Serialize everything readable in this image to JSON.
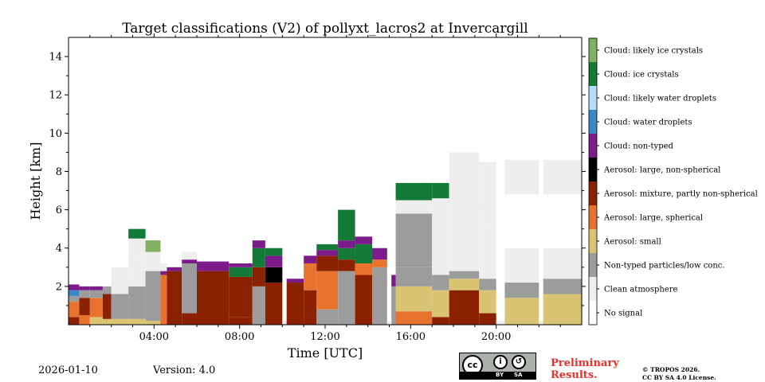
{
  "chart_data": {
    "type": "heatmap",
    "title": "Target classifications (V2) of pollyxt_lacros2 at Invercargill",
    "xlabel": "Time [UTC]",
    "ylabel": "Height [km]",
    "xlim": [
      0,
      24
    ],
    "ylim": [
      0,
      15
    ],
    "x_ticks": [
      "04:00",
      "08:00",
      "12:00",
      "16:00",
      "20:00"
    ],
    "x_tick_values": [
      4,
      8,
      12,
      16,
      20
    ],
    "y_ticks": [
      "2",
      "4",
      "6",
      "8",
      "10",
      "12",
      "14"
    ],
    "y_tick_values": [
      2,
      4,
      6,
      8,
      10,
      12,
      14
    ],
    "categories": [
      {
        "code": 11,
        "label": "Cloud: likely ice crystals",
        "color": "#82b062"
      },
      {
        "code": 10,
        "label": "Cloud: ice crystals",
        "color": "#147a38"
      },
      {
        "code": 9,
        "label": "Cloud: likely water droplets",
        "color": "#b4dcf8"
      },
      {
        "code": 8,
        "label": "Cloud: water droplets",
        "color": "#3a88c8"
      },
      {
        "code": 7,
        "label": "Cloud: non-typed",
        "color": "#7e1b8a"
      },
      {
        "code": 6,
        "label": "Aerosol: large, non-spherical",
        "color": "#000000"
      },
      {
        "code": 5,
        "label": "Aerosol: mixture, partly non-spherical",
        "color": "#8a2100"
      },
      {
        "code": 4,
        "label": "Aerosol: large, spherical",
        "color": "#e8732e"
      },
      {
        "code": 3,
        "label": "Aerosol: small",
        "color": "#d8c472"
      },
      {
        "code": 2,
        "label": "Non-typed particles/low conc.",
        "color": "#9c9c9c"
      },
      {
        "code": 1,
        "label": "Clean atmosphere",
        "color": "#eeeeee"
      },
      {
        "code": 0,
        "label": "No signal",
        "color": "#ffffff"
      }
    ],
    "profiles": [
      {
        "t0": 0.0,
        "t1": 0.5,
        "layers": [
          [
            0,
            0.4,
            5
          ],
          [
            0.4,
            1.2,
            4
          ],
          [
            1.2,
            1.5,
            2
          ],
          [
            1.5,
            1.8,
            8
          ],
          [
            1.8,
            2.1,
            7
          ]
        ]
      },
      {
        "t0": 0.5,
        "t1": 1.0,
        "layers": [
          [
            0,
            0.5,
            4
          ],
          [
            0.5,
            1.4,
            5
          ],
          [
            1.4,
            1.8,
            2
          ],
          [
            1.8,
            2.0,
            7
          ]
        ]
      },
      {
        "t0": 1.0,
        "t1": 1.6,
        "layers": [
          [
            0,
            0.4,
            3
          ],
          [
            0.4,
            1.4,
            4
          ],
          [
            1.4,
            1.8,
            2
          ],
          [
            1.8,
            2.0,
            7
          ]
        ]
      },
      {
        "t0": 1.6,
        "t1": 2.0,
        "layers": [
          [
            0,
            0.3,
            3
          ],
          [
            0.3,
            1.6,
            5
          ],
          [
            1.6,
            2.0,
            2
          ]
        ]
      },
      {
        "t0": 2.0,
        "t1": 2.8,
        "layers": [
          [
            0,
            0.3,
            3
          ],
          [
            0.3,
            1.6,
            2
          ],
          [
            1.6,
            3.0,
            1
          ]
        ]
      },
      {
        "t0": 2.8,
        "t1": 3.6,
        "layers": [
          [
            0,
            0.3,
            3
          ],
          [
            0.3,
            2.0,
            2
          ],
          [
            2.0,
            3.5,
            1
          ],
          [
            3.5,
            4.5,
            1
          ],
          [
            4.5,
            5.0,
            10
          ]
        ]
      },
      {
        "t0": 3.6,
        "t1": 4.3,
        "layers": [
          [
            0,
            0.2,
            3
          ],
          [
            0.2,
            2.8,
            2
          ],
          [
            2.8,
            3.8,
            1
          ],
          [
            3.8,
            4.4,
            11
          ]
        ]
      },
      {
        "t0": 4.3,
        "t1": 4.6,
        "layers": [
          [
            0,
            2.6,
            4
          ],
          [
            2.6,
            2.8,
            7
          ],
          [
            2.8,
            3.2,
            1
          ]
        ]
      },
      {
        "t0": 4.6,
        "t1": 5.3,
        "layers": [
          [
            0,
            2.8,
            5
          ],
          [
            2.8,
            3.0,
            7
          ]
        ]
      },
      {
        "t0": 5.3,
        "t1": 6.0,
        "layers": [
          [
            0,
            0.6,
            5
          ],
          [
            0.6,
            3.2,
            2
          ],
          [
            3.2,
            3.4,
            7
          ],
          [
            3.4,
            3.8,
            1
          ]
        ]
      },
      {
        "t0": 6.0,
        "t1": 7.5,
        "layers": [
          [
            0,
            2.8,
            5
          ],
          [
            2.8,
            3.3,
            7
          ]
        ]
      },
      {
        "t0": 7.5,
        "t1": 8.6,
        "layers": [
          [
            0,
            0.4,
            5
          ],
          [
            0.4,
            2.5,
            5
          ],
          [
            2.5,
            3.0,
            10
          ],
          [
            3.0,
            3.2,
            7
          ]
        ]
      },
      {
        "t0": 8.6,
        "t1": 9.2,
        "layers": [
          [
            0,
            2.0,
            2
          ],
          [
            2.0,
            3.0,
            5
          ],
          [
            3.0,
            4.0,
            10
          ],
          [
            4.0,
            4.4,
            7
          ]
        ]
      },
      {
        "t0": 9.2,
        "t1": 10.0,
        "layers": [
          [
            0,
            2.2,
            5
          ],
          [
            2.2,
            3.0,
            6
          ],
          [
            3.0,
            3.6,
            7
          ],
          [
            3.6,
            4.0,
            10
          ]
        ]
      },
      {
        "t0": 10.0,
        "t1": 10.2,
        "layers": [
          [
            0,
            0.2,
            1
          ]
        ]
      },
      {
        "t0": 10.2,
        "t1": 11.0,
        "layers": [
          [
            0,
            2.2,
            5
          ],
          [
            2.2,
            2.4,
            7
          ]
        ]
      },
      {
        "t0": 11.0,
        "t1": 11.6,
        "layers": [
          [
            0,
            1.8,
            5
          ],
          [
            1.8,
            3.2,
            4
          ],
          [
            3.2,
            3.6,
            7
          ]
        ]
      },
      {
        "t0": 11.6,
        "t1": 12.6,
        "layers": [
          [
            0,
            0.8,
            2
          ],
          [
            0.8,
            2.8,
            4
          ],
          [
            2.8,
            3.6,
            5
          ],
          [
            3.6,
            3.9,
            7
          ],
          [
            3.9,
            4.2,
            10
          ]
        ]
      },
      {
        "t0": 12.6,
        "t1": 13.4,
        "layers": [
          [
            0,
            2.8,
            2
          ],
          [
            2.8,
            3.4,
            5
          ],
          [
            3.4,
            4.0,
            10
          ],
          [
            4.0,
            4.4,
            7
          ],
          [
            4.4,
            6.0,
            10
          ]
        ]
      },
      {
        "t0": 13.4,
        "t1": 14.2,
        "layers": [
          [
            0,
            2.6,
            5
          ],
          [
            2.6,
            3.2,
            4
          ],
          [
            3.2,
            4.2,
            10
          ],
          [
            4.2,
            4.6,
            7
          ]
        ]
      },
      {
        "t0": 14.2,
        "t1": 14.9,
        "layers": [
          [
            0,
            3.0,
            2
          ],
          [
            3.0,
            3.4,
            4
          ],
          [
            3.4,
            4.0,
            7
          ]
        ]
      },
      {
        "t0": 14.9,
        "t1": 15.1,
        "layers": [
          [
            0,
            0.2,
            1
          ]
        ]
      },
      {
        "t0": 15.1,
        "t1": 15.3,
        "layers": [
          [
            0,
            2.0,
            2
          ],
          [
            2.0,
            2.6,
            7
          ]
        ]
      },
      {
        "t0": 15.3,
        "t1": 17.0,
        "layers": [
          [
            0,
            0.7,
            4
          ],
          [
            0.7,
            2.0,
            3
          ],
          [
            2.0,
            3.0,
            2
          ],
          [
            3.0,
            5.8,
            2
          ],
          [
            5.8,
            6.5,
            1
          ],
          [
            6.5,
            7.4,
            10
          ]
        ]
      },
      {
        "t0": 17.0,
        "t1": 17.8,
        "layers": [
          [
            0,
            0.4,
            5
          ],
          [
            0.4,
            1.8,
            3
          ],
          [
            1.8,
            2.6,
            2
          ],
          [
            2.6,
            6.6,
            1
          ],
          [
            6.6,
            7.4,
            10
          ]
        ]
      },
      {
        "t0": 17.8,
        "t1": 19.2,
        "layers": [
          [
            0,
            1.8,
            5
          ],
          [
            1.8,
            2.4,
            3
          ],
          [
            2.4,
            2.8,
            2
          ],
          [
            2.8,
            6.0,
            1
          ],
          [
            6.0,
            9.0,
            1
          ]
        ]
      },
      {
        "t0": 19.2,
        "t1": 20.0,
        "layers": [
          [
            0,
            0.6,
            5
          ],
          [
            0.6,
            1.8,
            3
          ],
          [
            1.8,
            2.4,
            2
          ],
          [
            2.4,
            5.0,
            1
          ],
          [
            5.0,
            8.5,
            1
          ]
        ]
      },
      {
        "t0": 20.0,
        "t1": 20.4,
        "layers": [
          [
            0,
            0.2,
            1
          ]
        ]
      },
      {
        "t0": 20.4,
        "t1": 22.0,
        "layers": [
          [
            0,
            1.4,
            3
          ],
          [
            1.4,
            2.2,
            2
          ],
          [
            2.2,
            4.0,
            1
          ],
          [
            6.8,
            8.6,
            1
          ]
        ]
      },
      {
        "t0": 22.0,
        "t1": 22.2,
        "layers": [
          [
            0,
            0.2,
            1
          ]
        ]
      },
      {
        "t0": 22.2,
        "t1": 24.0,
        "layers": [
          [
            0,
            1.6,
            3
          ],
          [
            1.6,
            2.4,
            2
          ],
          [
            2.4,
            4.0,
            1
          ],
          [
            6.8,
            8.6,
            1
          ]
        ]
      }
    ]
  },
  "footer": {
    "date": "2026-01-10",
    "version": "Version: 4.0",
    "preliminary_line1": "Preliminary",
    "preliminary_line2": "Results.",
    "copyright_line1": "© TROPOS 2026.",
    "copyright_line2": "CC BY SA 4.0 License.",
    "license_badge": {
      "cc": "cc",
      "by": "BY",
      "sa": "SA"
    }
  }
}
